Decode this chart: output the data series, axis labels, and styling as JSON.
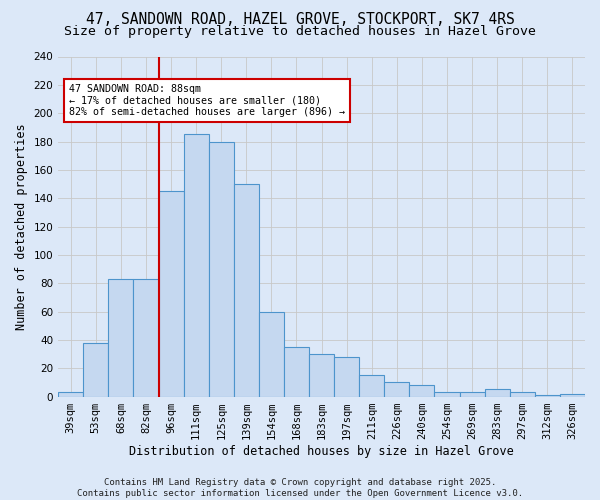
{
  "title_line1": "47, SANDOWN ROAD, HAZEL GROVE, STOCKPORT, SK7 4RS",
  "title_line2": "Size of property relative to detached houses in Hazel Grove",
  "xlabel": "Distribution of detached houses by size in Hazel Grove",
  "ylabel": "Number of detached properties",
  "categories": [
    "39sqm",
    "53sqm",
    "68sqm",
    "82sqm",
    "96sqm",
    "111sqm",
    "125sqm",
    "139sqm",
    "154sqm",
    "168sqm",
    "183sqm",
    "197sqm",
    "211sqm",
    "226sqm",
    "240sqm",
    "254sqm",
    "269sqm",
    "283sqm",
    "297sqm",
    "312sqm",
    "326sqm"
  ],
  "values": [
    3,
    38,
    83,
    83,
    145,
    185,
    180,
    150,
    60,
    35,
    30,
    28,
    15,
    10,
    8,
    3,
    3,
    5,
    3,
    1,
    2
  ],
  "bar_color": "#c5d8f0",
  "bar_edge_color": "#4d94cc",
  "bar_edge_width": 0.8,
  "grid_color": "#c8c8c8",
  "background_color": "#dce8f8",
  "vline_color": "#cc0000",
  "vline_x_index": 3.5,
  "annotation_text": "47 SANDOWN ROAD: 88sqm\n← 17% of detached houses are smaller (180)\n82% of semi-detached houses are larger (896) →",
  "annotation_box_color": "#ffffff",
  "annotation_box_edge": "#cc0000",
  "ylim": [
    0,
    240
  ],
  "yticks": [
    0,
    20,
    40,
    60,
    80,
    100,
    120,
    140,
    160,
    180,
    200,
    220,
    240
  ],
  "footer_line1": "Contains HM Land Registry data © Crown copyright and database right 2025.",
  "footer_line2": "Contains public sector information licensed under the Open Government Licence v3.0.",
  "title_fontsize": 10.5,
  "subtitle_fontsize": 9.5,
  "tick_fontsize": 7.5,
  "label_fontsize": 8.5,
  "footer_fontsize": 6.5
}
